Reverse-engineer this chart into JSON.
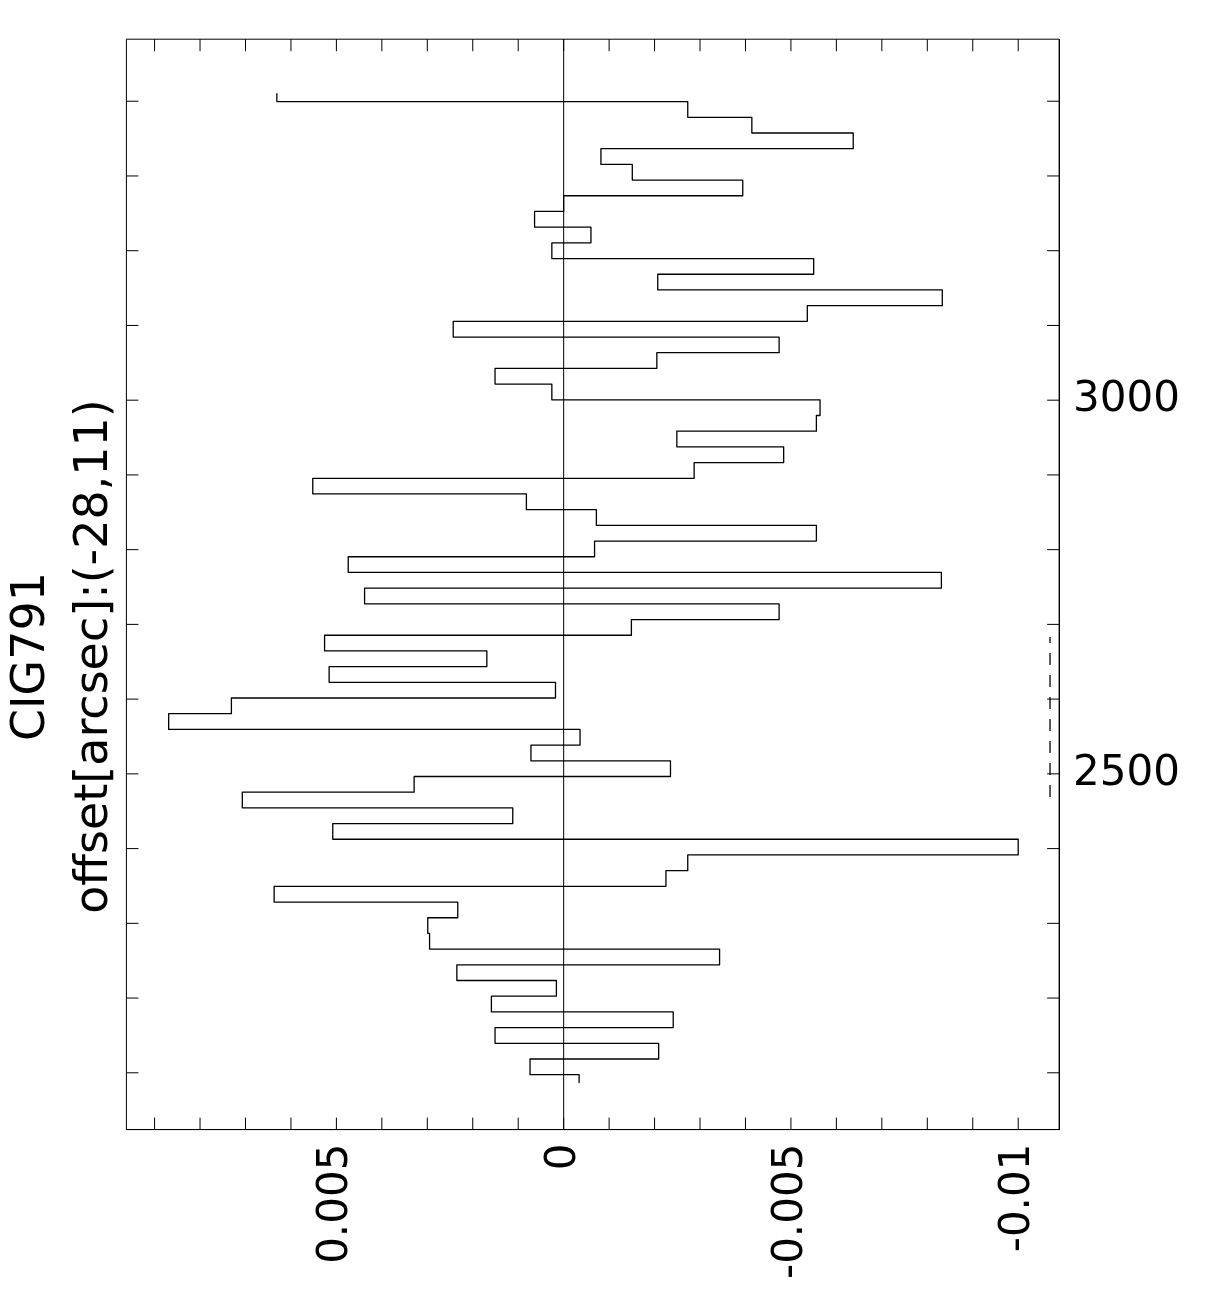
{
  "chart_data": {
    "type": "step",
    "title": "CIG791",
    "subtitle": "offset[arcsec]:(-28,11)",
    "orientation": "horizontal",
    "marker": "none",
    "series": [
      {
        "color": "#000000",
        "x": [
          3410,
          3389,
          3368,
          3347,
          3326,
          3305,
          3284,
          3263,
          3242,
          3221,
          3200,
          3179,
          3158,
          3137,
          3116,
          3095,
          3074,
          3053,
          3032,
          3011,
          2990,
          2969,
          2948,
          2927,
          2906,
          2885,
          2864,
          2843,
          2822,
          2801,
          2780,
          2759,
          2738,
          2717,
          2696,
          2675,
          2654,
          2633,
          2612,
          2591,
          2570,
          2549,
          2528,
          2507,
          2486,
          2465,
          2444,
          2423,
          2402,
          2381,
          2360,
          2339,
          2318,
          2297,
          2276,
          2255,
          2234,
          2213,
          2192,
          2171,
          2150,
          2129,
          2108,
          2087
        ],
        "values": [
          0.00631,
          -0.00273,
          -0.00414,
          -0.00637,
          -0.00082,
          -0.00151,
          -0.00394,
          0,
          0.00064,
          -0.0006,
          0.00026,
          -0.0055,
          -0.00207,
          -0.00833,
          -0.00536,
          0.00243,
          -0.00474,
          -0.00205,
          0.00151,
          0.00026,
          -0.00564,
          -0.00556,
          -0.00249,
          -0.00484,
          -0.00287,
          0.00552,
          0.00082,
          -0.00072,
          -0.00556,
          -0.00068,
          0.00474,
          -0.00831,
          0.00438,
          -0.00474,
          -0.00149,
          0.00526,
          0.00169,
          0.00516,
          0.00018,
          0.00731,
          0.00869,
          -0.00036,
          0.00072,
          -0.00235,
          0.00329,
          0.00707,
          0.00112,
          0.00508,
          -0.01,
          -0.00273,
          -0.00225,
          0.00637,
          0.00233,
          0.00299,
          0.00295,
          -0.00343,
          0.00235,
          0.00016,
          0.00159,
          -0.00241,
          0.00151,
          -0.00209,
          0.00074,
          -0.00034
        ]
      },
      {
        "type": "line",
        "color": "#000000",
        "line_style": "dashed",
        "x": [
          2469,
          2683
        ],
        "values": [
          -0.0107,
          -0.0107
        ]
      }
    ],
    "xlim": [
      0.00962,
      -0.0109
    ],
    "xticks": [
      {
        "value": 0.009,
        "label": null
      },
      {
        "value": 0.008,
        "label": null
      },
      {
        "value": 0.007,
        "label": null
      },
      {
        "value": 0.006,
        "label": null
      },
      0.005,
      {
        "value": 0.004,
        "label": null
      },
      {
        "value": 0.003,
        "label": null
      },
      {
        "value": 0.002,
        "label": null
      },
      {
        "value": 0.001,
        "label": null
      },
      0,
      {
        "value": -0.001,
        "label": null
      },
      {
        "value": -0.002,
        "label": null
      },
      {
        "value": -0.003,
        "label": null
      },
      {
        "value": -0.004,
        "label": null
      },
      -0.005,
      {
        "value": -0.006,
        "label": null
      },
      {
        "value": -0.007,
        "label": null
      },
      {
        "value": -0.008,
        "label": null
      },
      {
        "value": -0.009,
        "label": null
      },
      -0.01
    ],
    "ylim": [
      2024,
      3483
    ],
    "yticks": [
      {
        "value": 2100,
        "label": null
      },
      {
        "value": 2200,
        "label": null
      },
      {
        "value": 2300,
        "label": null
      },
      {
        "value": 2400,
        "label": null
      },
      2500,
      {
        "value": 2600,
        "label": null
      },
      {
        "value": 2700,
        "label": null
      },
      {
        "value": 2800,
        "label": null
      },
      {
        "value": 2900,
        "label": null
      },
      3000,
      {
        "value": 3100,
        "label": null
      },
      {
        "value": 3200,
        "label": null
      },
      {
        "value": 3300,
        "label": null
      },
      {
        "value": 3400,
        "label": null
      }
    ],
    "ref_lines": [
      {
        "axis": "x",
        "value": 0,
        "color": "#000000"
      }
    ]
  }
}
